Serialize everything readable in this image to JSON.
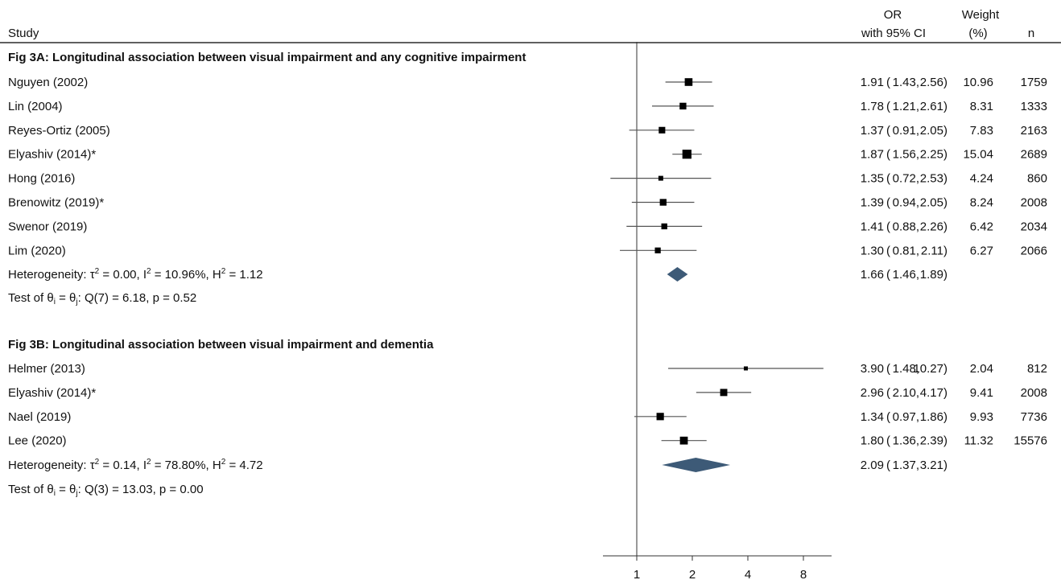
{
  "chart_data": {
    "type": "forest",
    "x_scale": "log2",
    "x_ticks": [
      1,
      2,
      4,
      8
    ],
    "x_range": [
      0.75,
      11
    ],
    "reference_line": 1,
    "headers": {
      "study": "Study",
      "or_line1": "OR",
      "or_line2": "with 95% CI",
      "weight_line1": "Weight",
      "weight_line2": "(%)",
      "n": "n"
    },
    "groups": [
      {
        "title": "Fig 3A: Longitudinal association between visual impairment and any cognitive impairment",
        "studies": [
          {
            "label": "Nguyen (2002)",
            "or": 1.91,
            "lo": 1.43,
            "hi": 2.56,
            "or_text": "1.91",
            "lo_text": "1.43",
            "hi_text": "2.56",
            "weight_text": "10.96",
            "n_text": "1759",
            "weight": 10.96
          },
          {
            "label": "Lin (2004)",
            "or": 1.78,
            "lo": 1.21,
            "hi": 2.61,
            "or_text": "1.78",
            "lo_text": "1.21",
            "hi_text": "2.61",
            "weight_text": "8.31",
            "n_text": "1333",
            "weight": 8.31
          },
          {
            "label": "Reyes-Ortiz (2005)",
            "or": 1.37,
            "lo": 0.91,
            "hi": 2.05,
            "or_text": "1.37",
            "lo_text": "0.91",
            "hi_text": "2.05",
            "weight_text": "7.83",
            "n_text": "2163",
            "weight": 7.83
          },
          {
            "label": "Elyashiv (2014)*",
            "or": 1.87,
            "lo": 1.56,
            "hi": 2.25,
            "or_text": "1.87",
            "lo_text": "1.56",
            "hi_text": "2.25",
            "weight_text": "15.04",
            "n_text": "2689",
            "weight": 15.04
          },
          {
            "label": "Hong (2016)",
            "or": 1.35,
            "lo": 0.72,
            "hi": 2.53,
            "or_text": "1.35",
            "lo_text": "0.72",
            "hi_text": "2.53",
            "weight_text": "4.24",
            "n_text": "860",
            "weight": 4.24
          },
          {
            "label": "Brenowitz (2019)*",
            "or": 1.39,
            "lo": 0.94,
            "hi": 2.05,
            "or_text": "1.39",
            "lo_text": "0.94",
            "hi_text": "2.05",
            "weight_text": "8.24",
            "n_text": "2008",
            "weight": 8.24
          },
          {
            "label": "Swenor (2019)",
            "or": 1.41,
            "lo": 0.88,
            "hi": 2.26,
            "or_text": "1.41",
            "lo_text": "0.88",
            "hi_text": "2.26",
            "weight_text": "6.42",
            "n_text": "2034",
            "weight": 6.42
          },
          {
            "label": "Lim (2020)",
            "or": 1.3,
            "lo": 0.81,
            "hi": 2.11,
            "or_text": "1.30",
            "lo_text": "0.81",
            "hi_text": "2.11",
            "weight_text": "6.27",
            "n_text": "2066",
            "weight": 6.27
          }
        ],
        "pooled": {
          "or": 1.66,
          "lo": 1.46,
          "hi": 1.89,
          "or_text": "1.66",
          "lo_text": "1.46",
          "hi_text": "1.89"
        },
        "heterogeneity": {
          "prefix": "Heterogeneity: τ",
          "tau_val": " = 0.00, I",
          "i_val": " = 10.96%, H",
          "h_val": " = 1.12",
          "sup": "2"
        },
        "test": {
          "prefix": "Test of θ",
          "mid": " = θ",
          "rest": ": Q(7) = 6.18, p = 0.52",
          "sub_i": "i",
          "sub_j": "j"
        }
      },
      {
        "title": "Fig 3B: Longitudinal association between visual impairment and dementia",
        "studies": [
          {
            "label": "Helmer (2013)",
            "or": 3.9,
            "lo": 1.48,
            "hi": 10.27,
            "or_text": "3.90",
            "lo_text": "1.48",
            "hi_text": "10.27",
            "weight_text": "2.04",
            "n_text": "812",
            "weight": 2.04
          },
          {
            "label": "Elyashiv (2014)*",
            "or": 2.96,
            "lo": 2.1,
            "hi": 4.17,
            "or_text": "2.96",
            "lo_text": "2.10",
            "hi_text": "4.17",
            "weight_text": "9.41",
            "n_text": "2008",
            "weight": 9.41
          },
          {
            "label": "Nael (2019)",
            "or": 1.34,
            "lo": 0.97,
            "hi": 1.86,
            "or_text": "1.34",
            "lo_text": "0.97",
            "hi_text": "1.86",
            "weight_text": "9.93",
            "n_text": "7736",
            "weight": 9.93
          },
          {
            "label": "Lee (2020)",
            "or": 1.8,
            "lo": 1.36,
            "hi": 2.39,
            "or_text": "1.80",
            "lo_text": "1.36",
            "hi_text": "2.39",
            "weight_text": "11.32",
            "n_text": "15576",
            "weight": 11.32
          }
        ],
        "pooled": {
          "or": 2.09,
          "lo": 1.37,
          "hi": 3.21,
          "or_text": "2.09",
          "lo_text": "1.37",
          "hi_text": "3.21"
        },
        "heterogeneity": {
          "prefix": "Heterogeneity: τ",
          "tau_val": " = 0.14, I",
          "i_val": " = 78.80%, H",
          "h_val": " = 4.72",
          "sup": "2"
        },
        "test": {
          "prefix": "Test of θ",
          "mid": " = θ",
          "rest": ": Q(3) = 13.03, p = 0.00",
          "sub_i": "i",
          "sub_j": "j"
        }
      }
    ],
    "colors": {
      "marker": "#000000",
      "pooled_diamond": "#3d5a77",
      "ci_line": "#555555",
      "axis": "#333333",
      "rule": "#000000"
    }
  }
}
